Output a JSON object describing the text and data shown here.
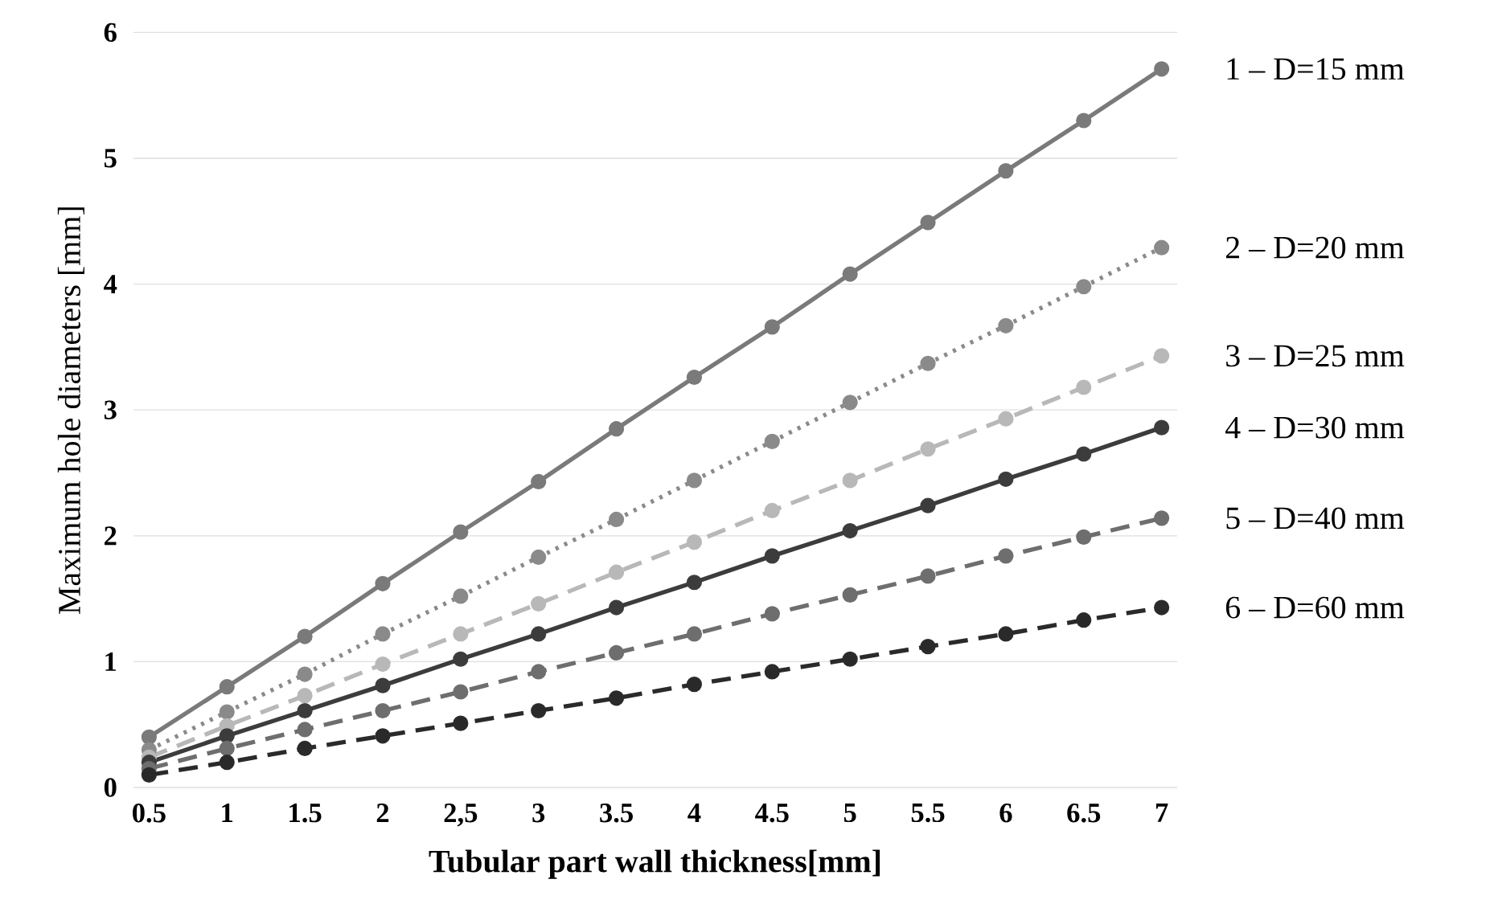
{
  "chart_data": {
    "type": "line",
    "xlabel": "Tubular part wall thickness[mm]",
    "ylabel": "Maximum hole diameters [mm]",
    "x": [
      0.5,
      1,
      1.5,
      2,
      2.5,
      3,
      3.5,
      4,
      4.5,
      5,
      5.5,
      6,
      6.5,
      7
    ],
    "series": [
      {
        "name": "1 – D=15 mm",
        "color": "#7a7a7a",
        "line_style": "solid",
        "values": [
          0.4,
          0.8,
          1.2,
          1.62,
          2.03,
          2.43,
          2.85,
          3.26,
          3.66,
          4.08,
          4.49,
          4.9,
          5.3,
          5.71
        ]
      },
      {
        "name": "2 – D=20 mm",
        "color": "#8a8a8a",
        "line_style": "dotted",
        "values": [
          0.3,
          0.6,
          0.9,
          1.22,
          1.52,
          1.83,
          2.13,
          2.44,
          2.75,
          3.06,
          3.37,
          3.67,
          3.98,
          4.29
        ]
      },
      {
        "name": "3 – D=25 mm",
        "color": "#b8b8b8",
        "line_style": "dashed",
        "values": [
          0.24,
          0.49,
          0.73,
          0.98,
          1.22,
          1.46,
          1.71,
          1.95,
          2.2,
          2.44,
          2.69,
          2.93,
          3.18,
          3.43
        ]
      },
      {
        "name": "4 – D=30 mm",
        "color": "#3c3c3c",
        "line_style": "solid",
        "values": [
          0.2,
          0.41,
          0.61,
          0.81,
          1.02,
          1.22,
          1.43,
          1.63,
          1.84,
          2.04,
          2.24,
          2.45,
          2.65,
          2.86
        ]
      },
      {
        "name": "5 – D=40 mm",
        "color": "#6e6e6e",
        "line_style": "dashed",
        "values": [
          0.15,
          0.31,
          0.46,
          0.61,
          0.76,
          0.92,
          1.07,
          1.22,
          1.38,
          1.53,
          1.68,
          1.84,
          1.99,
          2.14
        ]
      },
      {
        "name": "6 – D=60 mm",
        "color": "#2a2a2a",
        "line_style": "dashed",
        "values": [
          0.1,
          0.2,
          0.31,
          0.41,
          0.51,
          0.61,
          0.71,
          0.82,
          0.92,
          1.02,
          1.12,
          1.22,
          1.33,
          1.43
        ]
      }
    ],
    "xlim": [
      0.4,
      7.1
    ],
    "ylim": [
      0,
      6
    ],
    "xticks": [
      0.5,
      1,
      1.5,
      2,
      {
        "value": 2.5,
        "label": "2,5"
      },
      3,
      3.5,
      4,
      4.5,
      5,
      5.5,
      6,
      6.5,
      7
    ],
    "yticks": [
      0,
      1,
      2,
      3,
      4,
      5,
      6
    ],
    "grid": "y",
    "marker": "circle",
    "legend": "right"
  }
}
